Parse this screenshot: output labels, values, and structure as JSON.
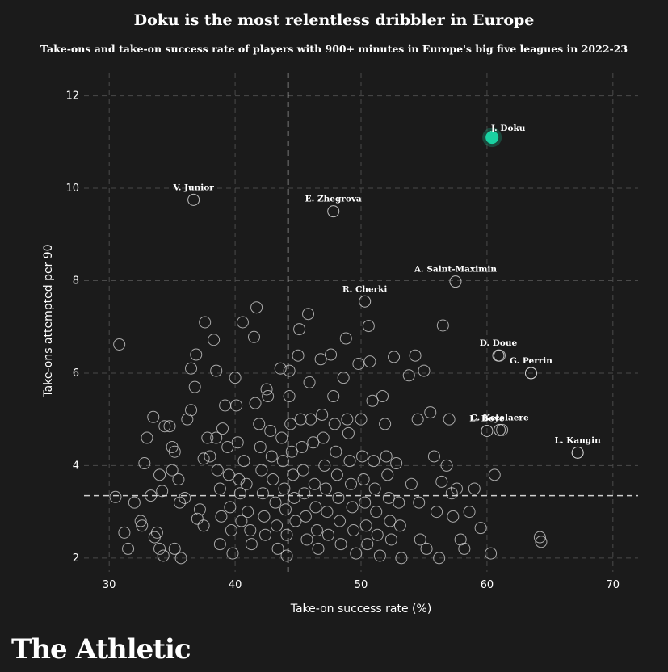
{
  "chart_data": {
    "type": "scatter",
    "title": "Doku is the most relentless dribbler in Europe",
    "subtitle": "Take-ons and take-on success rate of players with 900+ minutes in Europe's big five leagues in 2022-23",
    "xlabel": "Take-on success rate (%)",
    "ylabel": "Take-ons attempted per 90",
    "xlim": [
      28,
      72
    ],
    "ylim": [
      1.7,
      12.5
    ],
    "xticks": [
      "30",
      "40",
      "50",
      "60",
      "70"
    ],
    "yticks": [
      "2",
      "4",
      "6",
      "8",
      "10",
      "12"
    ],
    "grid": true,
    "reference_lines": {
      "x_mean": 44.2,
      "y_mean": 3.35
    },
    "highlight_color": "#1ad1a1",
    "point_color": "#d9d9d9",
    "highlighted": {
      "label": "J. Doku",
      "x": 60.4,
      "y": 11.1
    },
    "labeled_points": [
      {
        "label": "V. Junior",
        "x": 36.7,
        "y": 9.75
      },
      {
        "label": "E. Zhegrova",
        "x": 47.8,
        "y": 9.5
      },
      {
        "label": "R. Cherki",
        "x": 50.3,
        "y": 7.55
      },
      {
        "label": "A. Saint-Maximin",
        "x": 57.5,
        "y": 7.98
      },
      {
        "label": "D. Doue",
        "x": 60.9,
        "y": 6.38
      },
      {
        "label": "G. Perrin",
        "x": 63.5,
        "y": 6.0
      },
      {
        "label": "C. Ketelaere",
        "x": 61.0,
        "y": 4.77
      },
      {
        "label": "L. Boye",
        "x": 60.0,
        "y": 4.75
      },
      {
        "label": "L. Kangin",
        "x": 67.2,
        "y": 4.28
      }
    ],
    "points": [
      [
        30.8,
        6.62
      ],
      [
        30.5,
        3.32
      ],
      [
        31.2,
        2.55
      ],
      [
        31.5,
        2.2
      ],
      [
        32,
        3.2
      ],
      [
        32.5,
        2.8
      ],
      [
        32.6,
        2.7
      ],
      [
        33,
        4.6
      ],
      [
        32.8,
        4.05
      ],
      [
        33.5,
        5.05
      ],
      [
        33.3,
        3.35
      ],
      [
        33.8,
        2.55
      ],
      [
        33.6,
        2.45
      ],
      [
        34,
        3.8
      ],
      [
        34.2,
        3.45
      ],
      [
        34.4,
        4.85
      ],
      [
        34.8,
        4.85
      ],
      [
        34,
        2.2
      ],
      [
        34.3,
        2.05
      ],
      [
        35,
        3.9
      ],
      [
        35,
        4.4
      ],
      [
        35.2,
        4.3
      ],
      [
        35.5,
        3.7
      ],
      [
        35.6,
        3.2
      ],
      [
        35.2,
        2.2
      ],
      [
        35.7,
        2.0
      ],
      [
        36,
        3.3
      ],
      [
        36.2,
        5.0
      ],
      [
        36.5,
        5.2
      ],
      [
        36.8,
        5.7
      ],
      [
        36.9,
        6.4
      ],
      [
        36.5,
        6.1
      ],
      [
        37.2,
        3.05
      ],
      [
        37,
        2.85
      ],
      [
        37.5,
        2.7
      ],
      [
        37.5,
        4.15
      ],
      [
        37.8,
        4.6
      ],
      [
        38,
        4.2
      ],
      [
        37.6,
        7.1
      ],
      [
        38.3,
        6.72
      ],
      [
        38.5,
        6.05
      ],
      [
        38.5,
        4.6
      ],
      [
        38.6,
        3.9
      ],
      [
        38.8,
        3.5
      ],
      [
        38.9,
        2.9
      ],
      [
        38.8,
        2.3
      ],
      [
        39.2,
        5.3
      ],
      [
        39,
        4.8
      ],
      [
        39.4,
        4.4
      ],
      [
        39.5,
        3.8
      ],
      [
        39.6,
        3.1
      ],
      [
        39.7,
        2.6
      ],
      [
        39.8,
        2.1
      ],
      [
        40,
        5.9
      ],
      [
        40.1,
        5.3
      ],
      [
        40.2,
        4.5
      ],
      [
        40.3,
        3.7
      ],
      [
        40.4,
        3.4
      ],
      [
        40.5,
        2.8
      ],
      [
        40.6,
        7.1
      ],
      [
        40.7,
        4.1
      ],
      [
        40.9,
        3.6
      ],
      [
        41,
        3.0
      ],
      [
        41.2,
        2.6
      ],
      [
        41.3,
        2.3
      ],
      [
        41.5,
        6.78
      ],
      [
        41.7,
        7.42
      ],
      [
        41.6,
        5.35
      ],
      [
        41.9,
        4.9
      ],
      [
        42,
        4.4
      ],
      [
        42.1,
        3.9
      ],
      [
        42.2,
        3.4
      ],
      [
        42.3,
        2.9
      ],
      [
        42.4,
        2.5
      ],
      [
        42.5,
        5.65
      ],
      [
        42.6,
        5.5
      ],
      [
        42.8,
        4.75
      ],
      [
        42.9,
        4.2
      ],
      [
        43,
        3.7
      ],
      [
        43.2,
        3.2
      ],
      [
        43.3,
        2.7
      ],
      [
        43.4,
        2.2
      ],
      [
        43.6,
        6.1
      ],
      [
        43.7,
        4.6
      ],
      [
        43.8,
        4.1
      ],
      [
        43.9,
        3.5
      ],
      [
        44,
        3.05
      ],
      [
        44.1,
        2.5
      ],
      [
        44.1,
        2.05
      ],
      [
        44.3,
        5.5
      ],
      [
        44.4,
        4.9
      ],
      [
        44.5,
        4.3
      ],
      [
        44.6,
        3.8
      ],
      [
        44.7,
        3.3
      ],
      [
        44.8,
        2.8
      ],
      [
        44.3,
        6.05
      ],
      [
        45,
        6.38
      ],
      [
        45.1,
        6.95
      ],
      [
        45.2,
        5.0
      ],
      [
        45.3,
        4.4
      ],
      [
        45.4,
        3.9
      ],
      [
        45.5,
        3.4
      ],
      [
        45.6,
        2.9
      ],
      [
        45.7,
        2.4
      ],
      [
        45.8,
        7.28
      ],
      [
        45.9,
        5.8
      ],
      [
        46,
        5.0
      ],
      [
        46.2,
        4.5
      ],
      [
        46.3,
        3.6
      ],
      [
        46.4,
        3.1
      ],
      [
        46.5,
        2.6
      ],
      [
        46.6,
        2.2
      ],
      [
        46.8,
        6.3
      ],
      [
        46.9,
        5.1
      ],
      [
        47,
        4.6
      ],
      [
        47.1,
        4.0
      ],
      [
        47.2,
        3.5
      ],
      [
        47.3,
        3.0
      ],
      [
        47.4,
        2.5
      ],
      [
        47.6,
        6.4
      ],
      [
        47.8,
        5.5
      ],
      [
        47.9,
        4.9
      ],
      [
        48,
        4.3
      ],
      [
        48.1,
        3.8
      ],
      [
        48.2,
        3.3
      ],
      [
        48.3,
        2.8
      ],
      [
        48.4,
        2.3
      ],
      [
        48.6,
        5.9
      ],
      [
        48.8,
        6.75
      ],
      [
        48.9,
        5.0
      ],
      [
        49,
        4.7
      ],
      [
        49.1,
        4.1
      ],
      [
        49.2,
        3.6
      ],
      [
        49.3,
        3.1
      ],
      [
        49.4,
        2.6
      ],
      [
        49.6,
        2.1
      ],
      [
        49.8,
        6.2
      ],
      [
        50,
        5.0
      ],
      [
        50.1,
        4.2
      ],
      [
        50.2,
        3.7
      ],
      [
        50.3,
        3.2
      ],
      [
        50.4,
        2.7
      ],
      [
        50.5,
        2.3
      ],
      [
        50.6,
        7.02
      ],
      [
        50.7,
        6.25
      ],
      [
        50.9,
        5.4
      ],
      [
        51,
        4.1
      ],
      [
        51.1,
        3.5
      ],
      [
        51.2,
        3.0
      ],
      [
        51.3,
        2.5
      ],
      [
        51.5,
        2.05
      ],
      [
        51.7,
        5.5
      ],
      [
        51.9,
        4.9
      ],
      [
        52,
        4.2
      ],
      [
        52.1,
        3.8
      ],
      [
        52.2,
        3.3
      ],
      [
        52.3,
        2.8
      ],
      [
        52.4,
        2.4
      ],
      [
        52.6,
        6.35
      ],
      [
        52.8,
        4.05
      ],
      [
        53,
        3.2
      ],
      [
        53.1,
        2.7
      ],
      [
        53.2,
        2.0
      ],
      [
        53.8,
        5.95
      ],
      [
        54,
        3.6
      ],
      [
        54.3,
        6.38
      ],
      [
        54.5,
        5.0
      ],
      [
        54.6,
        3.2
      ],
      [
        54.7,
        2.4
      ],
      [
        55,
        6.05
      ],
      [
        55.2,
        2.2
      ],
      [
        55.5,
        5.15
      ],
      [
        55.8,
        4.2
      ],
      [
        56,
        3.0
      ],
      [
        56.2,
        2.0
      ],
      [
        56.4,
        3.65
      ],
      [
        56.5,
        7.03
      ],
      [
        56.8,
        4.0
      ],
      [
        57,
        5.0
      ],
      [
        57.2,
        3.4
      ],
      [
        57.3,
        2.9
      ],
      [
        57.6,
        3.5
      ],
      [
        57.9,
        2.4
      ],
      [
        58.2,
        2.2
      ],
      [
        58.6,
        3.0
      ],
      [
        59,
        3.5
      ],
      [
        59.5,
        2.65
      ],
      [
        60.3,
        2.1
      ],
      [
        60.6,
        3.8
      ],
      [
        61,
        6.38
      ],
      [
        61.2,
        4.77
      ],
      [
        63.5,
        6.0
      ],
      [
        64.2,
        2.45
      ],
      [
        64.3,
        2.35
      ],
      [
        67.2,
        4.28
      ]
    ]
  },
  "brand": "The Athletic"
}
